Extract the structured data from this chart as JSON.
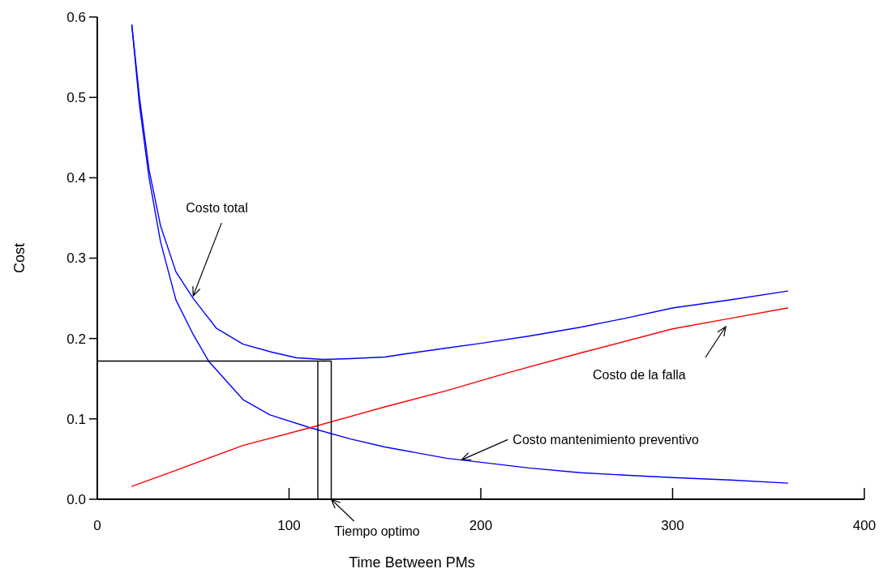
{
  "chart_data": {
    "type": "line",
    "xlabel": "Time Between PMs",
    "ylabel": "Cost",
    "xlim": [
      0,
      400
    ],
    "xticks": [
      0,
      100,
      200,
      300,
      400
    ],
    "ylim": [
      0,
      0.6
    ],
    "yticks": [
      {
        "value": 0,
        "label": "0.0"
      },
      0.1,
      0.2,
      0.3,
      0.4,
      0.5,
      0.6
    ],
    "grid": false,
    "marker": "none",
    "line_style": "solid",
    "series": [
      {
        "color": "#0000ff",
        "x": [
          18,
          22,
          27,
          33,
          41,
          50,
          62,
          76,
          91,
          104,
          118,
          132,
          150,
          161,
          182,
          200,
          225,
          252,
          275,
          300,
          330,
          360
        ],
        "values": [
          0.59,
          0.5,
          0.41,
          0.34,
          0.283,
          0.25,
          0.213,
          0.193,
          0.183,
          0.176,
          0.174,
          0.175,
          0.177,
          0.181,
          0.188,
          0.194,
          0.203,
          0.214,
          0.225,
          0.238,
          0.248,
          0.259
        ]
      },
      {
        "color": "#0000ff",
        "x": [
          18,
          22,
          27,
          33,
          41,
          50,
          58,
          76,
          90,
          111,
          132,
          150,
          182,
          200,
          225,
          252,
          275,
          300,
          330,
          360
        ],
        "values": [
          0.59,
          0.49,
          0.4,
          0.32,
          0.248,
          0.205,
          0.172,
          0.124,
          0.105,
          0.089,
          0.075,
          0.065,
          0.051,
          0.046,
          0.039,
          0.033,
          0.03,
          0.027,
          0.024,
          0.02
        ]
      },
      {
        "color": "#ff0000",
        "x": [
          18,
          41,
          76,
          111,
          150,
          182,
          215,
          252,
          300,
          330,
          360
        ],
        "values": [
          0.016,
          0.036,
          0.067,
          0.089,
          0.115,
          0.135,
          0.158,
          0.182,
          0.212,
          0.225,
          0.238
        ]
      },
      {
        "color": "#000000",
        "x": [
          0,
          115,
          115,
          122,
          122,
          115
        ],
        "values": [
          0.172,
          0.172,
          0,
          0,
          0.172,
          0.172
        ]
      }
    ],
    "annotations": [
      {
        "text": "Costo total",
        "x": 50,
        "y": 0.253
      },
      "Costo de la falla",
      {
        "text": "Costo mantenimiento preventivo",
        "x": 190,
        "y": 0.049
      },
      {
        "text": "Tiempo optimo",
        "x": 122,
        "y": 0
      }
    ]
  }
}
